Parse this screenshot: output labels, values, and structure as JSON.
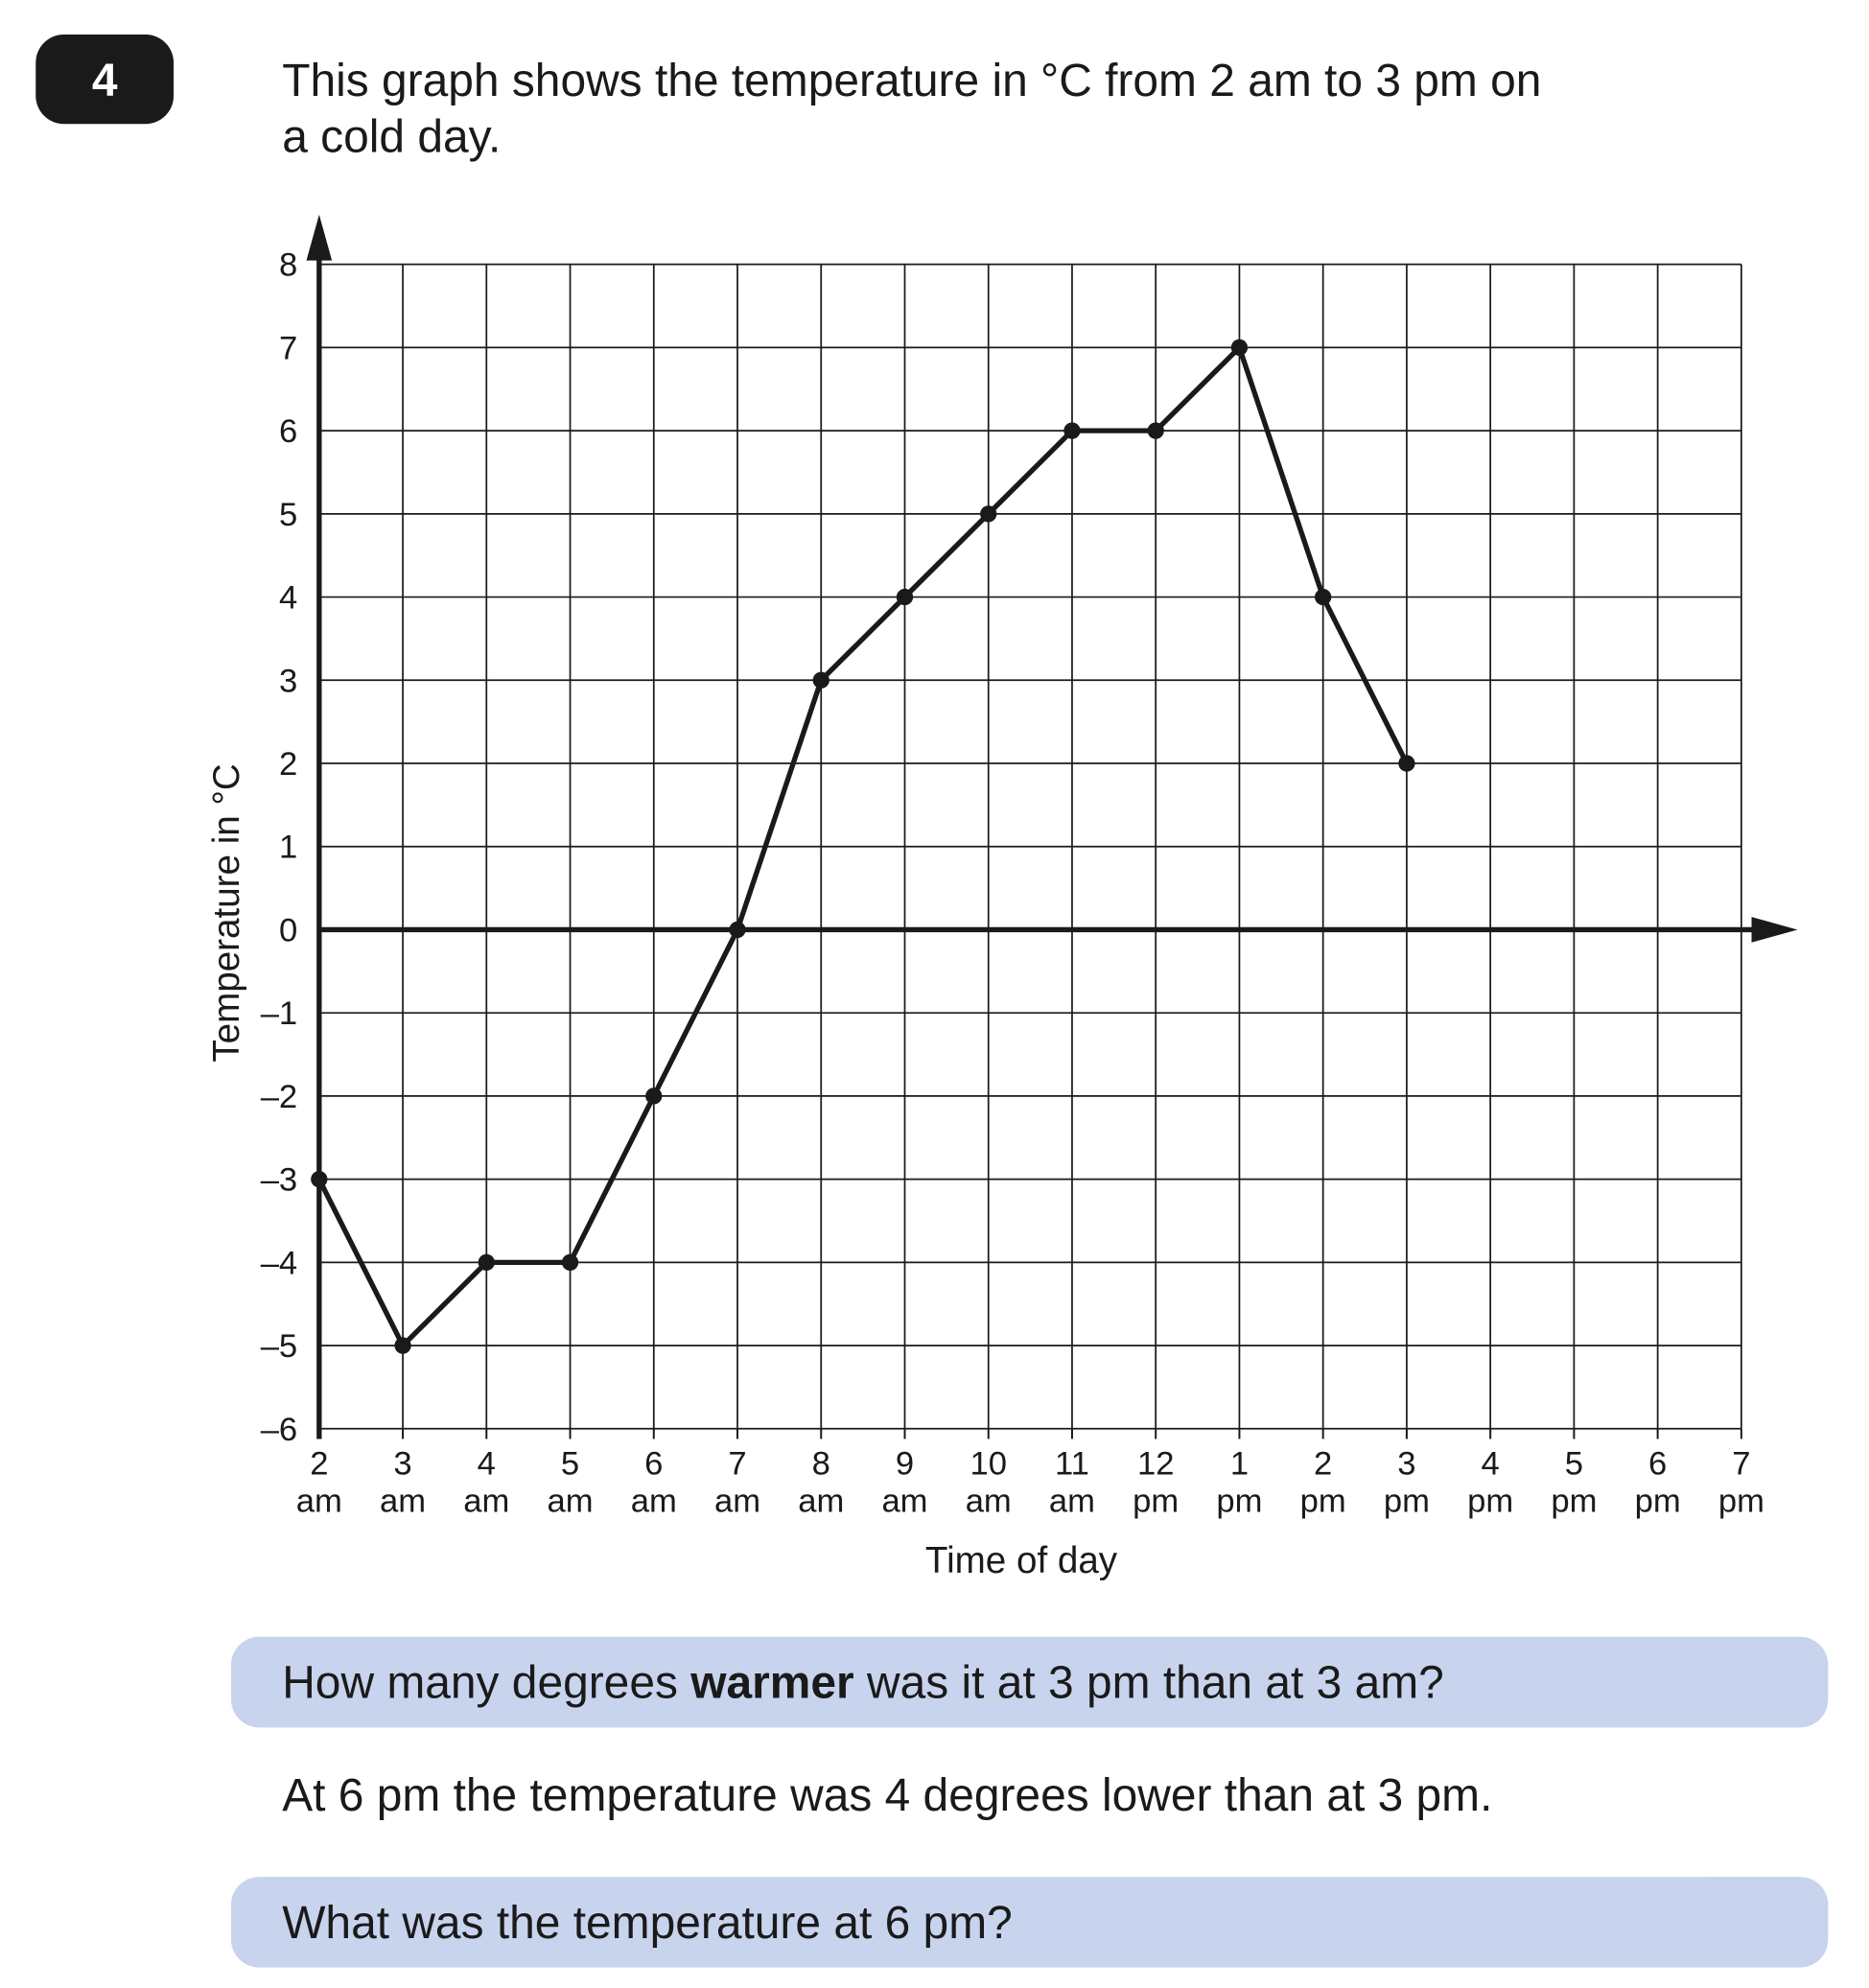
{
  "question_number": "4",
  "intro": [
    "This graph shows the temperature in °C from 2 am to 3 pm on",
    "a cold day."
  ],
  "chart_data": {
    "type": "line",
    "x_label": "Time of day",
    "y_label": "Temperature in °C",
    "categories": [
      "2 am",
      "3 am",
      "4 am",
      "5 am",
      "6 am",
      "7 am",
      "8 am",
      "9 am",
      "10 am",
      "11 am",
      "12 pm",
      "1 pm",
      "2 pm",
      "3 pm",
      "4 pm",
      "5 pm",
      "6 pm",
      "7 pm"
    ],
    "series": [
      {
        "name": "Temperature",
        "color": "#1a1a1a",
        "values": [
          -3,
          -5,
          -4,
          -4,
          -2,
          0,
          3,
          4,
          5,
          6,
          6,
          7,
          4,
          2,
          null,
          null,
          null,
          null
        ]
      }
    ],
    "ylim": [
      -6,
      8
    ],
    "yticks": [
      {
        "value": -6,
        "label": "–6"
      },
      {
        "value": -5,
        "label": "–5"
      },
      {
        "value": -4,
        "label": "–4"
      },
      {
        "value": -3,
        "label": "–3"
      },
      {
        "value": -2,
        "label": "–2"
      },
      {
        "value": -1,
        "label": "–1"
      },
      0,
      1,
      2,
      3,
      4,
      5,
      6,
      7,
      8
    ],
    "grid": true
  },
  "question_a": [
    "How many degrees ",
    "warmer",
    " was it at 3 pm than at 3 am?"
  ],
  "statement": "At 6 pm the temperature was 4 degrees lower than at 3 pm.",
  "question_b": "What was the temperature at 6 pm?"
}
